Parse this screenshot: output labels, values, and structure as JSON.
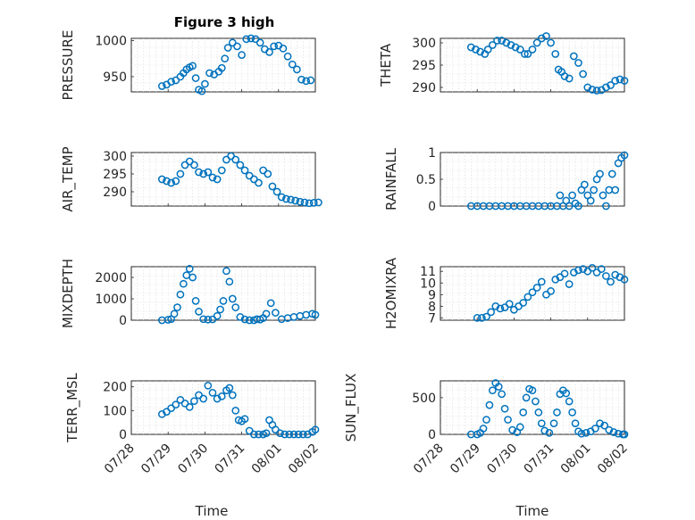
{
  "title": "Figure 3 high",
  "colors": {
    "series": "#0072BD",
    "axis": "#262626",
    "grid": "#d9d9d9"
  },
  "chart_data": [
    {
      "type": "scatter",
      "ylabel": "PRESSURE",
      "ylim": [
        929,
        1003
      ],
      "yticks": [
        950,
        1000
      ],
      "grid": true,
      "x": [
        "07/28 20:00",
        "07/28 23:00",
        "07/29 02:00",
        "07/29 05:00",
        "07/29 08:00",
        "07/29 10:00",
        "07/29 12:00",
        "07/29 14:00",
        "07/29 16:00",
        "07/29 18:00",
        "07/29 20:00",
        "07/29 22:00",
        "07/30 00:00",
        "07/30 03:00",
        "07/30 06:00",
        "07/30 09:00",
        "07/30 11:00",
        "07/30 13:00",
        "07/30 15:00",
        "07/30 18:00",
        "07/30 21:00",
        "07/31 00:00",
        "07/31 03:00",
        "07/31 06:00",
        "07/31 09:00",
        "07/31 12:00",
        "07/31 15:00",
        "07/31 18:00",
        "07/31 21:00",
        "08/01 00:00",
        "08/01 03:00",
        "08/01 06:00",
        "08/01 09:00",
        "08/01 12:00",
        "08/01 15:00",
        "08/01 18:00",
        "08/01 21:00"
      ],
      "y": [
        937,
        939,
        943,
        945,
        950,
        955,
        960,
        963,
        965,
        948,
        932,
        930,
        940,
        955,
        953,
        957,
        962,
        975,
        990,
        997,
        992,
        980,
        1002,
        1003,
        1002,
        997,
        988,
        984,
        992,
        993,
        989,
        978,
        967,
        960,
        946,
        944,
        945
      ]
    },
    {
      "type": "scatter",
      "ylabel": "THETA",
      "ylim": [
        289,
        301
      ],
      "yticks": [
        290,
        295,
        300
      ],
      "grid": true,
      "x": [
        "07/28 20:00",
        "07/28 23:00",
        "07/29 02:00",
        "07/29 05:00",
        "07/29 07:00",
        "07/29 10:00",
        "07/29 13:00",
        "07/29 16:00",
        "07/29 19:00",
        "07/29 22:00",
        "07/30 01:00",
        "07/30 04:00",
        "07/30 07:00",
        "07/30 09:00",
        "07/30 12:00",
        "07/30 15:00",
        "07/30 18:00",
        "07/30 21:00",
        "07/31 00:00",
        "07/31 03:00",
        "07/31 05:00",
        "07/31 07:00",
        "07/31 09:00",
        "07/31 12:00",
        "07/31 15:00",
        "07/31 18:00",
        "07/31 21:00",
        "08/01 00:00",
        "08/01 03:00",
        "08/01 06:00",
        "08/01 09:00",
        "08/01 12:00",
        "08/01 15:00",
        "08/01 18:00",
        "08/01 21:00",
        "08/02 00:00"
      ],
      "y": [
        299,
        298.5,
        298,
        297.5,
        298.5,
        299.5,
        300.5,
        300.5,
        300,
        299.5,
        299,
        298.5,
        297.5,
        297.5,
        298.5,
        300,
        301,
        301.5,
        300,
        297.5,
        294,
        293.5,
        292.5,
        292,
        297,
        295.5,
        293,
        290,
        289.5,
        289.3,
        289.4,
        290,
        290.5,
        291.5,
        291.8,
        291.5
      ]
    },
    {
      "type": "scatter",
      "ylabel": "AIR_TEMP",
      "ylim": [
        286,
        301
      ],
      "yticks": [
        290,
        295,
        300
      ],
      "grid": true,
      "x": [
        "07/28 20:00",
        "07/28 23:00",
        "07/29 02:00",
        "07/29 05:00",
        "07/29 08:00",
        "07/29 11:00",
        "07/29 14:00",
        "07/29 17:00",
        "07/29 20:00",
        "07/29 23:00",
        "07/30 02:00",
        "07/30 05:00",
        "07/30 08:00",
        "07/30 11:00",
        "07/30 14:00",
        "07/30 17:00",
        "07/30 20:00",
        "07/30 23:00",
        "07/31 02:00",
        "07/31 05:00",
        "07/31 08:00",
        "07/31 11:00",
        "07/31 14:00",
        "07/31 17:00",
        "07/31 20:00",
        "07/31 23:00",
        "08/01 02:00",
        "08/01 05:00",
        "08/01 08:00",
        "08/01 11:00",
        "08/01 14:00",
        "08/01 17:00",
        "08/01 20:00",
        "08/01 23:00",
        "08/02 02:00"
      ],
      "y": [
        293.5,
        293,
        292.5,
        293,
        295,
        297.5,
        298.5,
        297.5,
        295.5,
        295,
        295.5,
        294,
        293.5,
        296,
        299,
        300,
        299,
        297.5,
        296,
        294.5,
        293.5,
        292.5,
        296,
        295,
        291.5,
        290,
        288.5,
        288,
        287.8,
        287.5,
        287.2,
        287,
        286.8,
        286.9,
        287
      ]
    },
    {
      "type": "scatter",
      "ylabel": "RAINFALL",
      "ylim": [
        0,
        1
      ],
      "yticks": [
        0,
        0.5,
        1
      ],
      "grid": true,
      "x": [
        "07/28 20:00",
        "07/29 00:00",
        "07/29 04:00",
        "07/29 08:00",
        "07/29 12:00",
        "07/29 16:00",
        "07/29 20:00",
        "07/30 00:00",
        "07/30 04:00",
        "07/30 08:00",
        "07/30 12:00",
        "07/30 16:00",
        "07/30 20:00",
        "07/31 00:00",
        "07/31 04:00",
        "07/31 06:00",
        "07/31 08:00",
        "07/31 10:00",
        "07/31 12:00",
        "07/31 14:00",
        "07/31 16:00",
        "07/31 18:00",
        "07/31 20:00",
        "07/31 22:00",
        "08/01 00:00",
        "08/01 02:00",
        "08/01 04:00",
        "08/01 06:00",
        "08/01 08:00",
        "08/01 10:00",
        "08/01 12:00",
        "08/01 14:00",
        "08/01 16:00",
        "08/01 18:00",
        "08/01 20:00",
        "08/01 22:00",
        "08/02 00:00"
      ],
      "y": [
        0,
        0,
        0,
        0,
        0,
        0,
        0,
        0,
        0,
        0,
        0,
        0,
        0,
        0,
        0,
        0.2,
        0,
        0.1,
        0,
        0.2,
        0.05,
        0,
        0.3,
        0.4,
        0.2,
        0.1,
        0.3,
        0.5,
        0.6,
        0.2,
        0,
        0.3,
        0.6,
        0.3,
        0.8,
        0.9,
        0.95
      ]
    },
    {
      "type": "scatter",
      "ylabel": "MIXDEPTH",
      "ylim": [
        0,
        2500
      ],
      "yticks": [
        0,
        1000,
        2000
      ],
      "grid": true,
      "x": [
        "07/28 20:00",
        "07/29 00:00",
        "07/29 02:00",
        "07/29 04:00",
        "07/29 06:00",
        "07/29 08:00",
        "07/29 10:00",
        "07/29 12:00",
        "07/29 14:00",
        "07/29 16:00",
        "07/29 18:00",
        "07/29 20:00",
        "07/29 23:00",
        "07/30 02:00",
        "07/30 05:00",
        "07/30 08:00",
        "07/30 10:00",
        "07/30 12:00",
        "07/30 14:00",
        "07/30 16:00",
        "07/30 18:00",
        "07/30 20:00",
        "07/30 23:00",
        "07/31 02:00",
        "07/31 05:00",
        "07/31 08:00",
        "07/31 10:00",
        "07/31 12:00",
        "07/31 14:00",
        "07/31 16:00",
        "07/31 19:00",
        "07/31 22:00",
        "08/01 02:00",
        "08/01 06:00",
        "08/01 10:00",
        "08/01 14:00",
        "08/01 18:00",
        "08/01 22:00",
        "08/02 00:00"
      ],
      "y": [
        0,
        20,
        50,
        300,
        600,
        1200,
        1700,
        2100,
        2400,
        2000,
        900,
        400,
        50,
        30,
        40,
        200,
        500,
        900,
        2300,
        1800,
        1000,
        600,
        150,
        40,
        0,
        0,
        50,
        30,
        100,
        300,
        800,
        350,
        50,
        100,
        150,
        200,
        250,
        300,
        250
      ]
    },
    {
      "type": "scatter",
      "ylabel": "H2OMIXRA",
      "ylim": [
        6.8,
        11.4
      ],
      "yticks": [
        7,
        8,
        9,
        10,
        11
      ],
      "grid": true,
      "x": [
        "07/29 00:00",
        "07/29 03:00",
        "07/29 06:00",
        "07/29 09:00",
        "07/29 12:00",
        "07/29 15:00",
        "07/29 18:00",
        "07/29 21:00",
        "07/30 00:00",
        "07/30 03:00",
        "07/30 06:00",
        "07/30 09:00",
        "07/30 12:00",
        "07/30 15:00",
        "07/30 18:00",
        "07/30 21:00",
        "07/31 00:00",
        "07/31 03:00",
        "07/31 06:00",
        "07/31 09:00",
        "07/31 12:00",
        "07/31 15:00",
        "07/31 18:00",
        "07/31 21:00",
        "08/01 00:00",
        "08/01 03:00",
        "08/01 06:00",
        "08/01 09:00",
        "08/01 12:00",
        "08/01 15:00",
        "08/01 18:00",
        "08/01 21:00",
        "08/02 00:00"
      ],
      "y": [
        7,
        7,
        7.1,
        7.5,
        8,
        7.8,
        7.9,
        8.2,
        7.7,
        8,
        8.3,
        8.8,
        9.2,
        9.6,
        10.1,
        9,
        9.3,
        10.3,
        10.5,
        10.8,
        9.9,
        10.9,
        11.1,
        11.2,
        11,
        11.3,
        10.9,
        11.2,
        10.6,
        10.1,
        10.7,
        10.5,
        10.3
      ]
    },
    {
      "type": "scatter",
      "ylabel": "TERR_MSL",
      "ylim": [
        0,
        225
      ],
      "yticks": [
        0,
        100,
        200
      ],
      "grid": true,
      "x": [
        "07/28 20:00",
        "07/28 23:00",
        "07/29 02:00",
        "07/29 05:00",
        "07/29 08:00",
        "07/29 11:00",
        "07/29 14:00",
        "07/29 17:00",
        "07/29 20:00",
        "07/29 23:00",
        "07/30 02:00",
        "07/30 05:00",
        "07/30 08:00",
        "07/30 11:00",
        "07/30 14:00",
        "07/30 16:00",
        "07/30 18:00",
        "07/30 20:00",
        "07/30 22:00",
        "07/31 00:00",
        "07/31 02:00",
        "07/31 05:00",
        "07/31 08:00",
        "07/31 11:00",
        "07/31 14:00",
        "07/31 16:00",
        "07/31 18:00",
        "07/31 20:00",
        "07/31 22:00",
        "08/01 01:00",
        "08/01 04:00",
        "08/01 07:00",
        "08/01 10:00",
        "08/01 13:00",
        "08/01 16:00",
        "08/01 19:00",
        "08/01 22:00",
        "08/02 00:00"
      ],
      "y": [
        85,
        95,
        110,
        125,
        145,
        130,
        115,
        140,
        165,
        150,
        205,
        175,
        150,
        160,
        185,
        195,
        165,
        100,
        60,
        55,
        65,
        15,
        0,
        0,
        0,
        5,
        60,
        40,
        20,
        5,
        0,
        0,
        0,
        0,
        0,
        0,
        10,
        20
      ]
    },
    {
      "type": "scatter",
      "ylabel": "SUN_FLUX",
      "ylim": [
        0,
        730
      ],
      "yticks": [
        0,
        500
      ],
      "grid": true,
      "x": [
        "07/28 20:00",
        "07/29 00:00",
        "07/29 02:00",
        "07/29 04:00",
        "07/29 06:00",
        "07/29 08:00",
        "07/29 10:00",
        "07/29 12:00",
        "07/29 14:00",
        "07/29 16:00",
        "07/29 18:00",
        "07/29 20:00",
        "07/29 23:00",
        "07/30 02:00",
        "07/30 04:00",
        "07/30 06:00",
        "07/30 08:00",
        "07/30 10:00",
        "07/30 12:00",
        "07/30 14:00",
        "07/30 16:00",
        "07/30 18:00",
        "07/30 20:00",
        "07/30 23:00",
        "07/31 02:00",
        "07/31 04:00",
        "07/31 06:00",
        "07/31 08:00",
        "07/31 10:00",
        "07/31 12:00",
        "07/31 14:00",
        "07/31 16:00",
        "07/31 18:00",
        "07/31 20:00",
        "07/31 23:00",
        "08/01 02:00",
        "08/01 05:00",
        "08/01 08:00",
        "08/01 11:00",
        "08/01 14:00",
        "08/01 17:00",
        "08/01 20:00",
        "08/01 23:00",
        "08/02 00:00"
      ],
      "y": [
        0,
        0,
        20,
        80,
        200,
        400,
        600,
        700,
        650,
        550,
        350,
        200,
        60,
        30,
        100,
        300,
        500,
        620,
        600,
        450,
        300,
        150,
        50,
        20,
        150,
        300,
        550,
        600,
        560,
        450,
        300,
        150,
        40,
        10,
        20,
        40,
        80,
        150,
        120,
        60,
        30,
        10,
        0,
        0
      ]
    }
  ],
  "x_axis": {
    "tick_labels": [
      "07/28",
      "07/29",
      "07/30",
      "07/31",
      "08/01",
      "08/02"
    ],
    "label": "Time",
    "tick_dates": [
      "07/28 00:00",
      "07/29 00:00",
      "07/30 00:00",
      "07/31 00:00",
      "08/01 00:00",
      "08/02 00:00"
    ]
  }
}
